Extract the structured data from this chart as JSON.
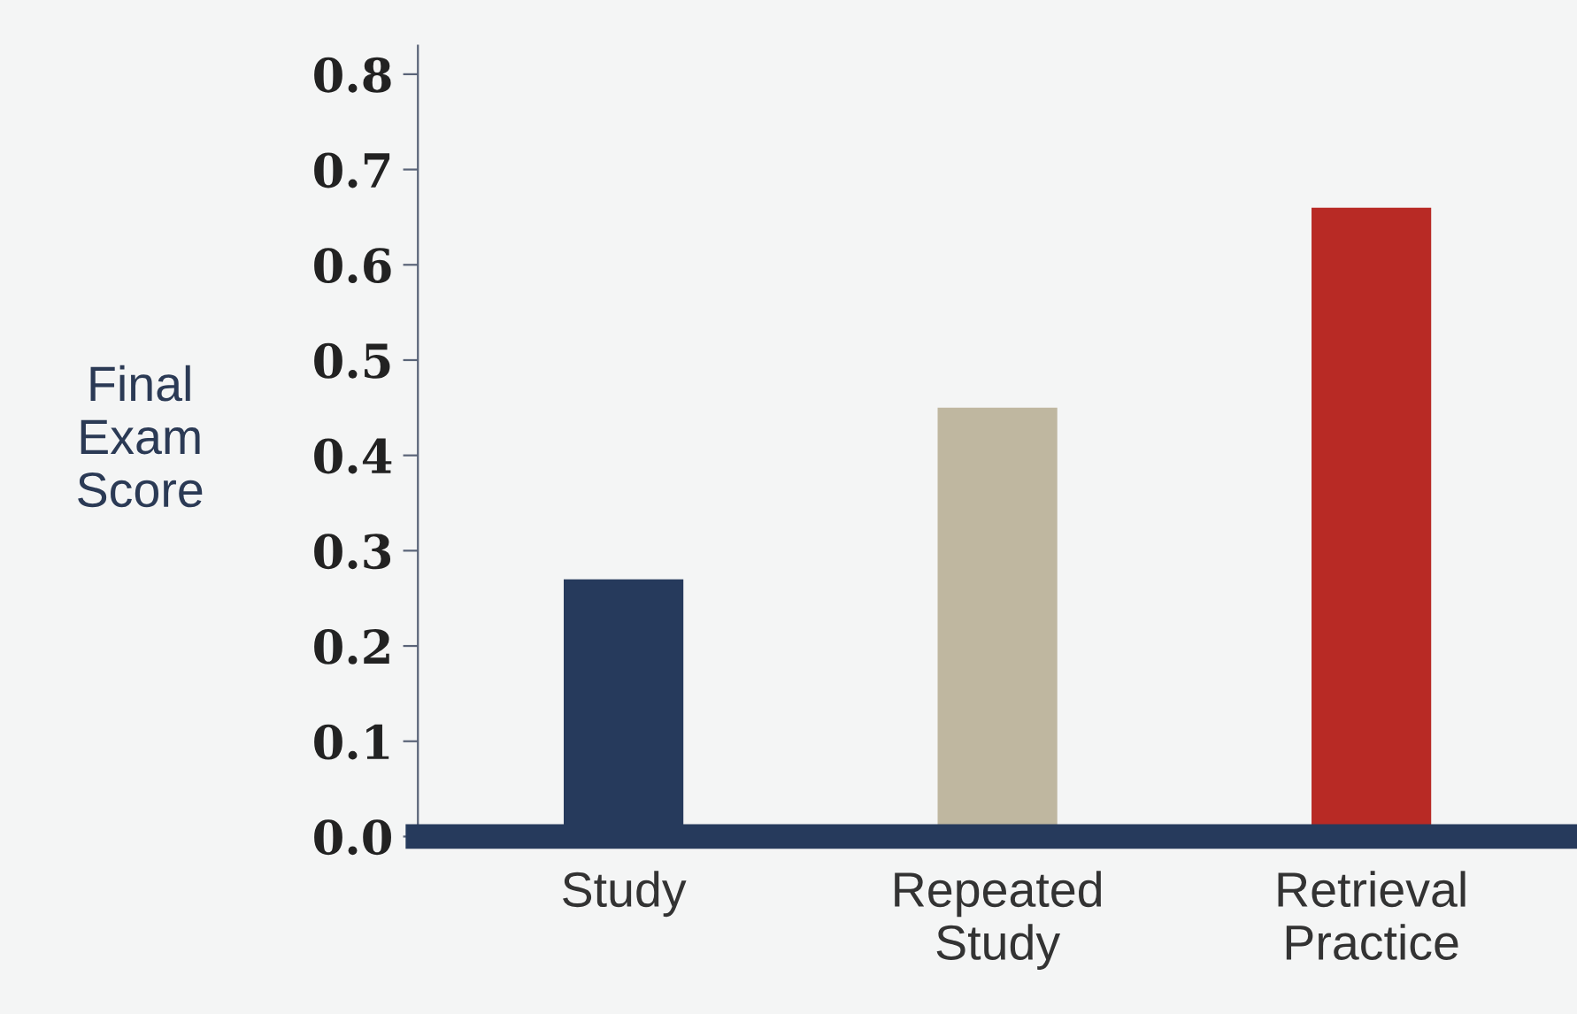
{
  "chart_data": {
    "type": "bar",
    "ylabel": "Final\nExam\nScore",
    "categories": [
      "Study",
      "Repeated\nStudy",
      "Retrieval\nPractice"
    ],
    "values": [
      0.27,
      0.45,
      0.66
    ],
    "colors": [
      "#263a5c",
      "#bfb7a0",
      "#b82a25"
    ],
    "ylim": [
      0,
      0.83
    ],
    "yticks": [
      {
        "value": 0,
        "label": "0.0"
      },
      0.1,
      0.2,
      0.3,
      0.4,
      0.5,
      0.6,
      0.7,
      0.8
    ],
    "grid": false
  }
}
